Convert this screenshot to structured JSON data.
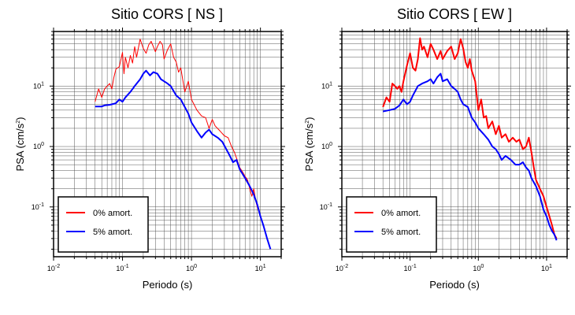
{
  "chart_data": [
    {
      "type": "line",
      "title": "Sitio CORS [ NS ]",
      "xlabel": "Periodo (s)",
      "ylabel_main": "PSA (cm/s",
      "ylabel_sup": "2",
      "ylabel_tail": ")",
      "xscale": "log",
      "yscale": "log",
      "xlim": [
        0.01,
        20
      ],
      "ylim": [
        0.015,
        80
      ],
      "grid": true,
      "legend_position": "bottom-left",
      "x_ticks": [
        {
          "base": "10",
          "exp": "-2",
          "value": 0.01
        },
        {
          "base": "10",
          "exp": "-1",
          "value": 0.1
        },
        {
          "base": "10",
          "exp": "0",
          "value": 1
        },
        {
          "base": "10",
          "exp": "1",
          "value": 10
        }
      ],
      "y_ticks": [
        {
          "base": "10",
          "exp": "-1",
          "value": 0.1
        },
        {
          "base": "10",
          "exp": "0",
          "value": 1
        },
        {
          "base": "10",
          "exp": "1",
          "value": 10
        }
      ],
      "series": [
        {
          "name": "0% amort.",
          "color": "#ff0000",
          "points": [
            [
              0.04,
              5.5
            ],
            [
              0.045,
              9
            ],
            [
              0.05,
              6.5
            ],
            [
              0.055,
              9
            ],
            [
              0.06,
              10
            ],
            [
              0.065,
              11
            ],
            [
              0.07,
              9
            ],
            [
              0.075,
              14
            ],
            [
              0.08,
              19
            ],
            [
              0.09,
              21
            ],
            [
              0.1,
              36
            ],
            [
              0.105,
              16
            ],
            [
              0.11,
              30
            ],
            [
              0.12,
              20
            ],
            [
              0.13,
              32
            ],
            [
              0.14,
              24
            ],
            [
              0.15,
              45
            ],
            [
              0.16,
              30
            ],
            [
              0.18,
              60
            ],
            [
              0.2,
              42
            ],
            [
              0.22,
              35
            ],
            [
              0.24,
              48
            ],
            [
              0.26,
              55
            ],
            [
              0.3,
              37
            ],
            [
              0.32,
              45
            ],
            [
              0.35,
              55
            ],
            [
              0.38,
              48
            ],
            [
              0.4,
              28
            ],
            [
              0.45,
              40
            ],
            [
              0.5,
              50
            ],
            [
              0.55,
              30
            ],
            [
              0.6,
              25
            ],
            [
              0.65,
              17
            ],
            [
              0.7,
              20
            ],
            [
              0.8,
              8
            ],
            [
              0.9,
              12
            ],
            [
              1.0,
              6
            ],
            [
              1.2,
              4
            ],
            [
              1.4,
              3.2
            ],
            [
              1.6,
              3
            ],
            [
              1.8,
              2
            ],
            [
              2.0,
              2.8
            ],
            [
              2.2,
              2.2
            ],
            [
              2.6,
              1.8
            ],
            [
              3.0,
              1.5
            ],
            [
              3.4,
              1.4
            ],
            [
              3.8,
              1.0
            ],
            [
              4.2,
              0.8
            ],
            [
              4.6,
              0.6
            ],
            [
              5.0,
              0.45
            ],
            [
              5.5,
              0.38
            ],
            [
              6.0,
              0.32
            ],
            [
              6.5,
              0.28
            ],
            [
              7.0,
              0.2
            ],
            [
              7.5,
              0.15
            ],
            [
              8.0,
              0.2
            ],
            [
              8.5,
              0.13
            ],
            [
              9.0,
              0.1
            ],
            [
              10,
              0.07
            ],
            [
              11,
              0.05
            ],
            [
              12.5,
              0.03
            ],
            [
              14,
              0.02
            ]
          ]
        },
        {
          "name": "5% amort.",
          "color": "#0000ff",
          "points": [
            [
              0.04,
              4.6
            ],
            [
              0.05,
              4.6
            ],
            [
              0.055,
              4.8
            ],
            [
              0.065,
              4.9
            ],
            [
              0.08,
              5.2
            ],
            [
              0.09,
              6
            ],
            [
              0.1,
              5.5
            ],
            [
              0.11,
              6.5
            ],
            [
              0.13,
              8
            ],
            [
              0.15,
              10
            ],
            [
              0.18,
              13
            ],
            [
              0.2,
              16
            ],
            [
              0.22,
              18
            ],
            [
              0.25,
              15
            ],
            [
              0.28,
              17
            ],
            [
              0.32,
              16
            ],
            [
              0.36,
              13
            ],
            [
              0.4,
              12
            ],
            [
              0.45,
              11
            ],
            [
              0.5,
              10
            ],
            [
              0.6,
              7
            ],
            [
              0.7,
              6
            ],
            [
              0.8,
              4.5
            ],
            [
              0.9,
              3.5
            ],
            [
              1.0,
              2.5
            ],
            [
              1.2,
              1.8
            ],
            [
              1.4,
              1.4
            ],
            [
              1.6,
              1.7
            ],
            [
              1.8,
              1.9
            ],
            [
              2.0,
              1.6
            ],
            [
              2.4,
              1.4
            ],
            [
              2.8,
              1.2
            ],
            [
              3.2,
              0.9
            ],
            [
              3.6,
              0.7
            ],
            [
              4.0,
              0.55
            ],
            [
              4.5,
              0.6
            ],
            [
              5.0,
              0.42
            ],
            [
              6.0,
              0.3
            ],
            [
              7.0,
              0.22
            ],
            [
              8.0,
              0.16
            ],
            [
              9.0,
              0.11
            ],
            [
              10,
              0.07
            ],
            [
              11,
              0.05
            ],
            [
              12.5,
              0.03
            ],
            [
              14,
              0.02
            ]
          ]
        }
      ]
    },
    {
      "type": "line",
      "title": "Sitio CORS [ EW ]",
      "xlabel": "Periodo (s)",
      "ylabel_main": "PSA (cm/s",
      "ylabel_sup": "2",
      "ylabel_tail": ")",
      "xscale": "log",
      "yscale": "log",
      "xlim": [
        0.01,
        20
      ],
      "ylim": [
        0.015,
        80
      ],
      "grid": true,
      "legend_position": "bottom-left",
      "x_ticks": [
        {
          "base": "10",
          "exp": "-2",
          "value": 0.01
        },
        {
          "base": "10",
          "exp": "-1",
          "value": 0.1
        },
        {
          "base": "10",
          "exp": "0",
          "value": 1
        },
        {
          "base": "10",
          "exp": "1",
          "value": 10
        }
      ],
      "y_ticks": [
        {
          "base": "10",
          "exp": "-1",
          "value": 0.1
        },
        {
          "base": "10",
          "exp": "0",
          "value": 1
        },
        {
          "base": "10",
          "exp": "1",
          "value": 10
        }
      ],
      "series": [
        {
          "name": "0% amort.",
          "color": "#ff0000",
          "points": [
            [
              0.04,
              4.5
            ],
            [
              0.045,
              6.5
            ],
            [
              0.05,
              5.5
            ],
            [
              0.055,
              11
            ],
            [
              0.06,
              10
            ],
            [
              0.065,
              9
            ],
            [
              0.07,
              10
            ],
            [
              0.075,
              8
            ],
            [
              0.08,
              12
            ],
            [
              0.09,
              22
            ],
            [
              0.1,
              35
            ],
            [
              0.11,
              20
            ],
            [
              0.12,
              18
            ],
            [
              0.13,
              28
            ],
            [
              0.14,
              62
            ],
            [
              0.15,
              40
            ],
            [
              0.16,
              45
            ],
            [
              0.18,
              30
            ],
            [
              0.2,
              50
            ],
            [
              0.22,
              40
            ],
            [
              0.25,
              28
            ],
            [
              0.28,
              38
            ],
            [
              0.3,
              28
            ],
            [
              0.35,
              38
            ],
            [
              0.4,
              45
            ],
            [
              0.45,
              28
            ],
            [
              0.5,
              35
            ],
            [
              0.55,
              60
            ],
            [
              0.6,
              42
            ],
            [
              0.65,
              25
            ],
            [
              0.7,
              20
            ],
            [
              0.75,
              28
            ],
            [
              0.8,
              18
            ],
            [
              0.9,
              12
            ],
            [
              1.0,
              4
            ],
            [
              1.1,
              6
            ],
            [
              1.2,
              3
            ],
            [
              1.3,
              3.2
            ],
            [
              1.4,
              2
            ],
            [
              1.6,
              2.6
            ],
            [
              1.8,
              1.6
            ],
            [
              2.0,
              2.2
            ],
            [
              2.2,
              1.4
            ],
            [
              2.5,
              1.6
            ],
            [
              2.8,
              1.2
            ],
            [
              3.2,
              1.4
            ],
            [
              3.6,
              1.2
            ],
            [
              4.0,
              1.3
            ],
            [
              4.5,
              0.9
            ],
            [
              5.0,
              1.0
            ],
            [
              5.5,
              1.4
            ],
            [
              6.0,
              0.8
            ],
            [
              6.5,
              0.45
            ],
            [
              7.0,
              0.28
            ],
            [
              8.0,
              0.2
            ],
            [
              9.0,
              0.15
            ],
            [
              10,
              0.1
            ],
            [
              11,
              0.07
            ],
            [
              12,
              0.05
            ],
            [
              13,
              0.035
            ],
            [
              14,
              0.03
            ]
          ]
        },
        {
          "name": "5% amort.",
          "color": "#0000ff",
          "points": [
            [
              0.04,
              3.8
            ],
            [
              0.05,
              4
            ],
            [
              0.06,
              4.2
            ],
            [
              0.07,
              4.8
            ],
            [
              0.08,
              6
            ],
            [
              0.09,
              5
            ],
            [
              0.1,
              5.5
            ],
            [
              0.11,
              7
            ],
            [
              0.13,
              10
            ],
            [
              0.15,
              11
            ],
            [
              0.18,
              12
            ],
            [
              0.2,
              13
            ],
            [
              0.22,
              11
            ],
            [
              0.25,
              14
            ],
            [
              0.28,
              16
            ],
            [
              0.3,
              12
            ],
            [
              0.35,
              13
            ],
            [
              0.4,
              10
            ],
            [
              0.45,
              9
            ],
            [
              0.5,
              8
            ],
            [
              0.55,
              6
            ],
            [
              0.6,
              5
            ],
            [
              0.7,
              4.5
            ],
            [
              0.8,
              3
            ],
            [
              0.9,
              2.5
            ],
            [
              1.0,
              2
            ],
            [
              1.2,
              1.6
            ],
            [
              1.4,
              1.3
            ],
            [
              1.6,
              1.0
            ],
            [
              1.8,
              0.9
            ],
            [
              2.0,
              0.75
            ],
            [
              2.2,
              0.6
            ],
            [
              2.5,
              0.7
            ],
            [
              3.0,
              0.6
            ],
            [
              3.5,
              0.5
            ],
            [
              4.0,
              0.5
            ],
            [
              4.5,
              0.55
            ],
            [
              5.0,
              0.45
            ],
            [
              5.5,
              0.4
            ],
            [
              6.0,
              0.3
            ],
            [
              7.0,
              0.22
            ],
            [
              8.0,
              0.15
            ],
            [
              9.0,
              0.09
            ],
            [
              10,
              0.07
            ],
            [
              11,
              0.05
            ],
            [
              12,
              0.04
            ],
            [
              13,
              0.035
            ],
            [
              14,
              0.028
            ]
          ]
        }
      ]
    }
  ]
}
